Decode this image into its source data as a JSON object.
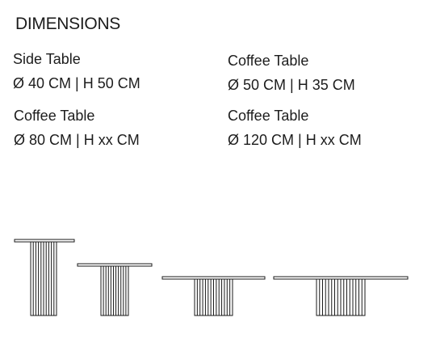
{
  "heading": "DIMENSIONS",
  "tables": [
    {
      "name": "Side Table",
      "size": "Ø 40 CM | H 50 CM"
    },
    {
      "name": "Coffee Table",
      "size": "Ø 50 CM | H 35 CM"
    },
    {
      "name": "Coffee Table",
      "size": "Ø 80 CM | H xx CM"
    },
    {
      "name": "Coffee Table",
      "size": "Ø 120 CM | H xx CM"
    }
  ],
  "line_color": "#1a1a1a"
}
